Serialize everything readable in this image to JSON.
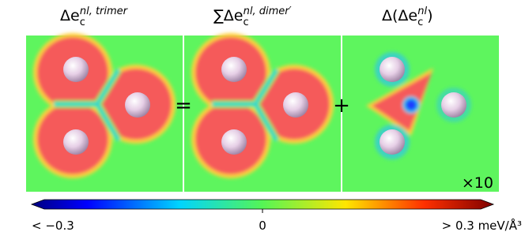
{
  "panels": [
    {
      "title": {
        "base": "Δe",
        "sub": "c",
        "sup": "nl, trimer"
      }
    },
    {
      "title": {
        "base": "∑Δe",
        "sub": "c",
        "sup": "nl, dimer′"
      }
    },
    {
      "title": {
        "base": "Δ(Δe",
        "sub": "c",
        "sup": "nl",
        "close": ")"
      },
      "annotation": "×10"
    }
  ],
  "operators": [
    "=",
    "+"
  ],
  "colorbar": {
    "labels": [
      "< −0.3",
      "0",
      "> 0.3 meV/Å³"
    ]
  }
}
